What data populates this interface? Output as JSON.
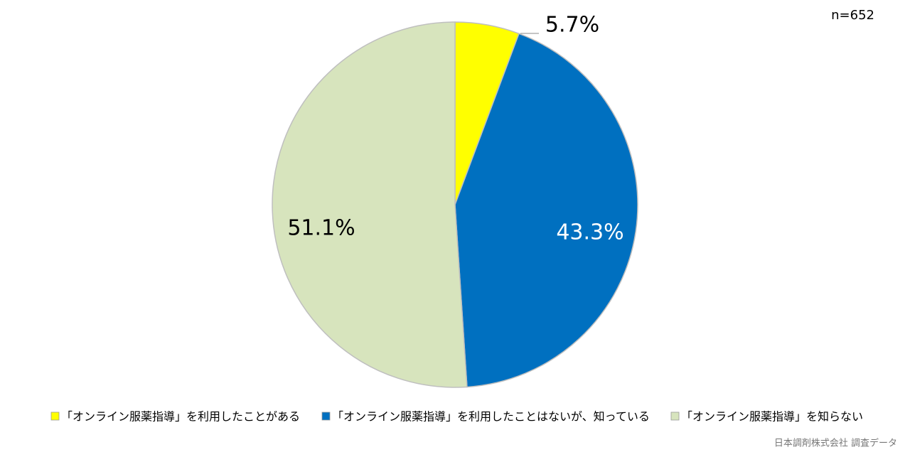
{
  "chart_data": {
    "type": "pie",
    "note": "n=652",
    "categories": [
      "「オンライン服薬指導」を利用したことがある",
      "「オンライン服薬指導」を利用したことはないが、知っている",
      "「オンライン服薬指導」を知らない"
    ],
    "values": [
      5.7,
      43.3,
      51.1
    ],
    "value_labels": [
      "5.7%",
      "43.3%",
      "51.1%"
    ],
    "colors": [
      "#ffff00",
      "#0070c0",
      "#d7e4bd"
    ],
    "source": "日本調剤株式会社 調査データ",
    "legend": "bottom"
  }
}
